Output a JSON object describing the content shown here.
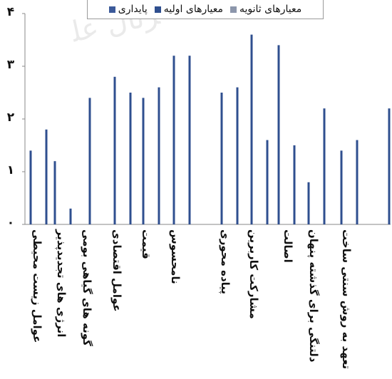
{
  "chart_data": {
    "type": "bar",
    "legend": [
      {
        "name": "پایداری",
        "color": "#3c5a9a"
      },
      {
        "name": "معیارهای اولیه",
        "color": "#2f4f8f"
      },
      {
        "name": "معیارهای ثانویه",
        "color": "#8c96ab"
      }
    ],
    "yticks": [
      "۰",
      "۱",
      "۲",
      "۳",
      "۴"
    ],
    "ylim": [
      0,
      4
    ],
    "bars": [
      {
        "cat": 0,
        "value": 1.4
      },
      {
        "cat": 0,
        "value": 1.8
      },
      {
        "cat": 1,
        "value": 1.2
      },
      {
        "cat": 1,
        "value": 0.3
      },
      {
        "cat": 2,
        "value": 2.4
      },
      {
        "cat": 3,
        "value": 2.8
      },
      {
        "cat": 3,
        "value": 2.5
      },
      {
        "cat": 4,
        "value": 2.4
      },
      {
        "cat": 4,
        "value": 2.6
      },
      {
        "cat": 5,
        "value": 3.2
      },
      {
        "cat": 5,
        "value": 3.2
      },
      {
        "cat": 6,
        "value": 2.5
      },
      {
        "cat": 6,
        "value": 2.6
      },
      {
        "cat": 7,
        "value": 3.6
      },
      {
        "cat": 7,
        "value": 1.6
      },
      {
        "cat": 8,
        "value": 3.4
      },
      {
        "cat": 8,
        "value": 1.5
      },
      {
        "cat": 9,
        "value": 0.8
      },
      {
        "cat": 9,
        "value": 2.2
      },
      {
        "cat": 10,
        "value": 1.4
      },
      {
        "cat": 10,
        "value": 1.6
      },
      {
        "cat": 11,
        "value": 2.2
      }
    ],
    "categories": [
      "عوامل زیست محیطی",
      "انرژی های تجدیدپذیر",
      "گونه های گیاهی بومی",
      "عوامل اقتصادی",
      "قیمت",
      "نامحسوس",
      "پیاده محوری",
      "مشارکت کاربرین",
      "اصالت",
      "دلتنگی برای گذشته پنهان",
      "تعهد به روش سنتی ساخت",
      ""
    ]
  }
}
